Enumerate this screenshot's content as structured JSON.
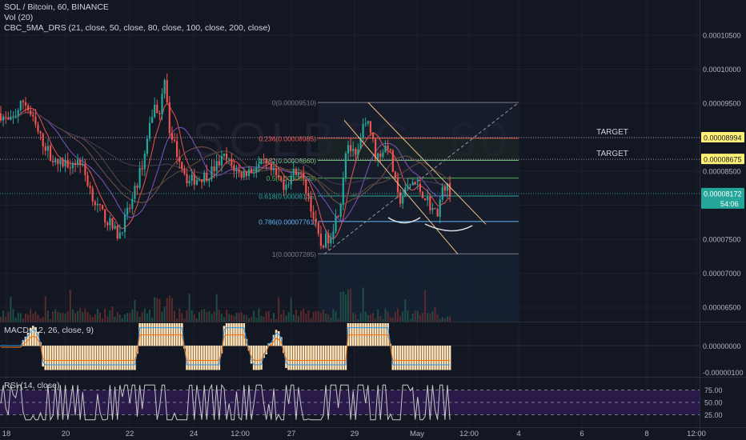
{
  "legend": {
    "symbol": "SOL / Bitcoin, 60, BINANCE",
    "volume": "Vol (20)",
    "sma": "CBC_5MA_DRS (21, close, 50, close, 80, close, 100, close, 200, close)"
  },
  "watermark": "SOLBTC, 60",
  "panes": {
    "macd_title": "MACD (12, 26, close, 9)",
    "rsi_title": "RSI (14, close)"
  },
  "colors": {
    "background": "#131722",
    "up": "#26a69a",
    "down": "#ef5350",
    "target": "#fff176",
    "current": "#26a69a",
    "macd_hist": "#ffe0b2",
    "rsi_band": "#2a1a4a",
    "rsi_line": "#c8c8c8"
  },
  "chart_data": {
    "type": "candlestick",
    "price_axis": [
      "0.00010500",
      "0.00010000",
      "0.00009500",
      "0.00009000",
      "0.00008500",
      "0.00008000",
      "0.00007500",
      "0.00007000",
      "0.00006500"
    ],
    "price_ticks": [
      0.000105,
      0.0001,
      9.5e-05,
      9e-05,
      8.5e-05,
      8e-05,
      7.5e-05,
      7e-05,
      6.5e-05
    ],
    "time_axis": [
      "18",
      "20",
      "22",
      "24",
      "12:00",
      "27",
      "29",
      "May",
      "12:00",
      "4",
      "6",
      "8",
      "12:00"
    ],
    "fib_levels": [
      {
        "label": "0(0.00009510)",
        "value": 9.51e-05,
        "color": "#787b86"
      },
      {
        "label": "0.236(0.00008985)",
        "value": 8.985e-05,
        "color": "#ef5350"
      },
      {
        "label": "0.382(0.00008660)",
        "value": 8.66e-05,
        "color": "#81c784"
      },
      {
        "label": "0.5(0.00008398)",
        "value": 8.398e-05,
        "color": "#4caf50"
      },
      {
        "label": "0.618(0.00008135)",
        "value": 8.135e-05,
        "color": "#26a69a"
      },
      {
        "label": "0.786(0.00007761)",
        "value": 7.761e-05,
        "color": "#64b5f6"
      },
      {
        "label": "1(0.00007285)",
        "value": 7.285e-05,
        "color": "#787b86"
      }
    ],
    "targets": [
      {
        "label": "TARGET",
        "value": 8.994e-05,
        "badge": "0.00008994"
      },
      {
        "label": "TARGET",
        "value": 8.675e-05,
        "badge": "0.00008675"
      }
    ],
    "current_price": {
      "value": 8.172e-05,
      "badge": "0.00008172",
      "countdown": "54:06"
    },
    "macd_axis": [
      "0.00000000",
      "-0.00000100"
    ],
    "rsi_axis": [
      "75.00",
      "50.00",
      "25.00"
    ]
  }
}
